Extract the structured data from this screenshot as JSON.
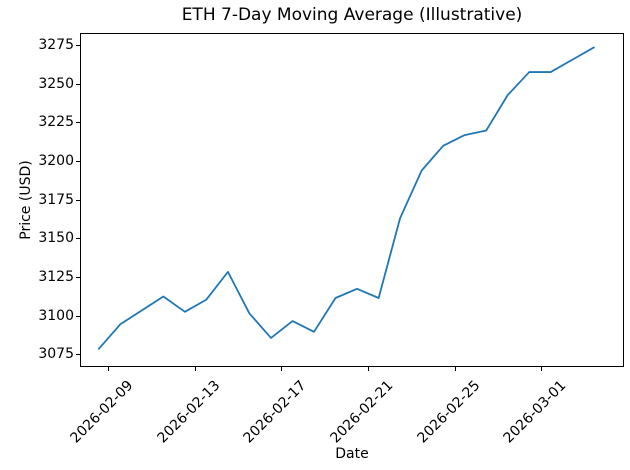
{
  "figure": {
    "title": "ETH 7-Day Moving Average (Illustrative)"
  },
  "chart_data": {
    "type": "line",
    "title": "ETH 7-Day Moving Average (Illustrative)",
    "xlabel": "Date",
    "ylabel": "Price (USD)",
    "x": [
      "2026-02-08",
      "2026-02-09",
      "2026-02-10",
      "2026-02-11",
      "2026-02-12",
      "2026-02-13",
      "2026-02-14",
      "2026-02-15",
      "2026-02-16",
      "2026-02-17",
      "2026-02-18",
      "2026-02-19",
      "2026-02-20",
      "2026-02-21",
      "2026-02-22",
      "2026-02-23",
      "2026-02-24",
      "2026-02-25",
      "2026-02-26",
      "2026-02-27",
      "2026-02-28",
      "2026-03-01",
      "2026-03-02",
      "2026-03-03"
    ],
    "series": [
      {
        "color": "#1f77b4",
        "values": [
          3078,
          3094,
          3103,
          3112,
          3102,
          3110,
          3128,
          3101,
          3085,
          3096,
          3089,
          3111,
          3117,
          3111,
          3163,
          3194,
          3210,
          3217,
          3220,
          3243,
          3258,
          3258,
          3266,
          3274
        ]
      }
    ],
    "x_tick_labels": [
      "2026-02-09",
      "2026-02-13",
      "2026-02-17",
      "2026-02-21",
      "2026-02-25",
      "2026-03-01"
    ],
    "y_tick_labels": [
      "3075",
      "3100",
      "3125",
      "3150",
      "3175",
      "3200",
      "3225",
      "3250",
      "3275"
    ],
    "y_ticks": [
      3075,
      3100,
      3125,
      3150,
      3175,
      3200,
      3225,
      3250,
      3275
    ],
    "ylim": [
      3068,
      3285
    ],
    "grid": false,
    "legend": "none",
    "x_tick_rotation_deg": 45
  }
}
